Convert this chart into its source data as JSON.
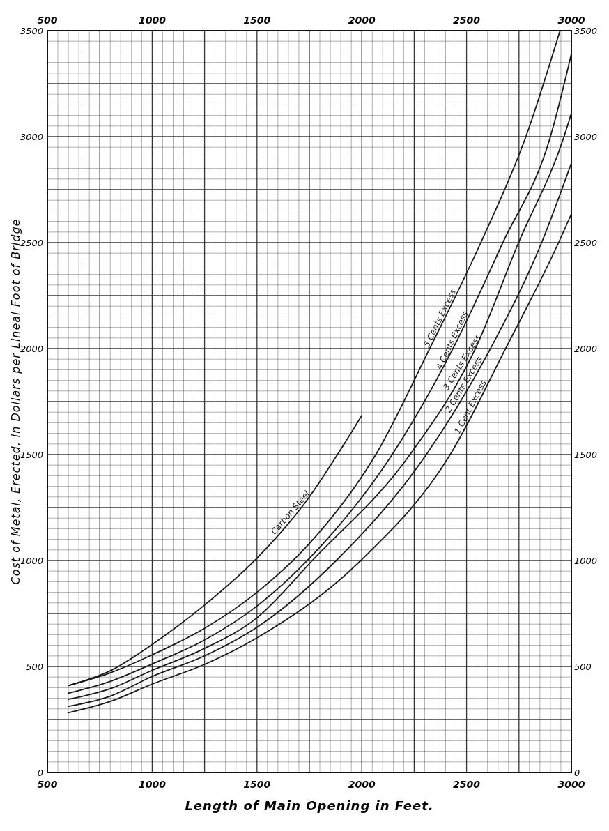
{
  "chart_data": {
    "type": "line",
    "xlabel": "Length of Main Opening in Feet.",
    "ylabel": "Cost of Metal, Erected, in Dollars per Lineal Foot of Bridge",
    "xlim": [
      500,
      3000
    ],
    "xticks": [
      500,
      1000,
      1500,
      2000,
      2500,
      3000
    ],
    "x2lim": [
      500,
      3000
    ],
    "x2ticks": [
      500,
      1000,
      1500,
      2000,
      2500,
      3000
    ],
    "ylim": [
      0,
      3500
    ],
    "yticks": [
      0,
      500,
      1000,
      1500,
      2000,
      2500,
      3000,
      3500
    ],
    "y2lim": [
      0,
      3500
    ],
    "y2ticks": [
      0,
      500,
      1000,
      1500,
      2000,
      2500,
      3000,
      3500
    ],
    "grid": true,
    "marker": "none",
    "line_style": "solid",
    "series": [
      {
        "name": "Carbon Steel",
        "color": "#1a1a1a",
        "x": [
          600,
          800,
          1000,
          1250,
          1500,
          1750,
          1884,
          2000
        ],
        "values": [
          410,
          480,
          604,
          790,
          1011,
          1300,
          1500,
          1684
        ]
      },
      {
        "name": "5 Cents Excess",
        "color": "#1a1a1a",
        "x": [
          600,
          800,
          1000,
          1250,
          1500,
          1750,
          2067,
          2324,
          2568,
          2783,
          2946
        ],
        "values": [
          410,
          470,
          555,
          680,
          850,
          1080,
          1500,
          2000,
          2500,
          3000,
          3500
        ]
      },
      {
        "name": "4 Cents Excess",
        "color": "#1a1a1a",
        "x": [
          600,
          800,
          1000,
          1250,
          1500,
          1750,
          2145,
          2435,
          2673,
          2900,
          3000
        ],
        "values": [
          374,
          430,
          512,
          625,
          785,
          1010,
          1500,
          2000,
          2500,
          3000,
          3390
        ]
      },
      {
        "name": "3 Cents Excess",
        "color": "#1a1a1a",
        "x": [
          600,
          800,
          1000,
          1250,
          1500,
          1764,
          2230,
          2542,
          2748,
          2965,
          3000
        ],
        "values": [
          345,
          395,
          482,
          585,
          730,
          1000,
          1500,
          2000,
          2500,
          3000,
          3110
        ]
      },
      {
        "name": "2 Cents Excess",
        "color": "#1a1a1a",
        "x": [
          600,
          800,
          1000,
          1250,
          1500,
          1878,
          2308,
          2614,
          2858,
          3000
        ],
        "values": [
          312,
          360,
          453,
          550,
          685,
          1000,
          1500,
          2000,
          2500,
          2875
        ]
      },
      {
        "name": "1 Cent Excess",
        "color": "#1a1a1a",
        "x": [
          600,
          800,
          1000,
          1250,
          1500,
          1995,
          2422,
          2686,
          2939,
          3000
        ],
        "values": [
          282,
          335,
          417,
          510,
          635,
          1000,
          1500,
          2000,
          2500,
          2635
        ]
      }
    ]
  }
}
